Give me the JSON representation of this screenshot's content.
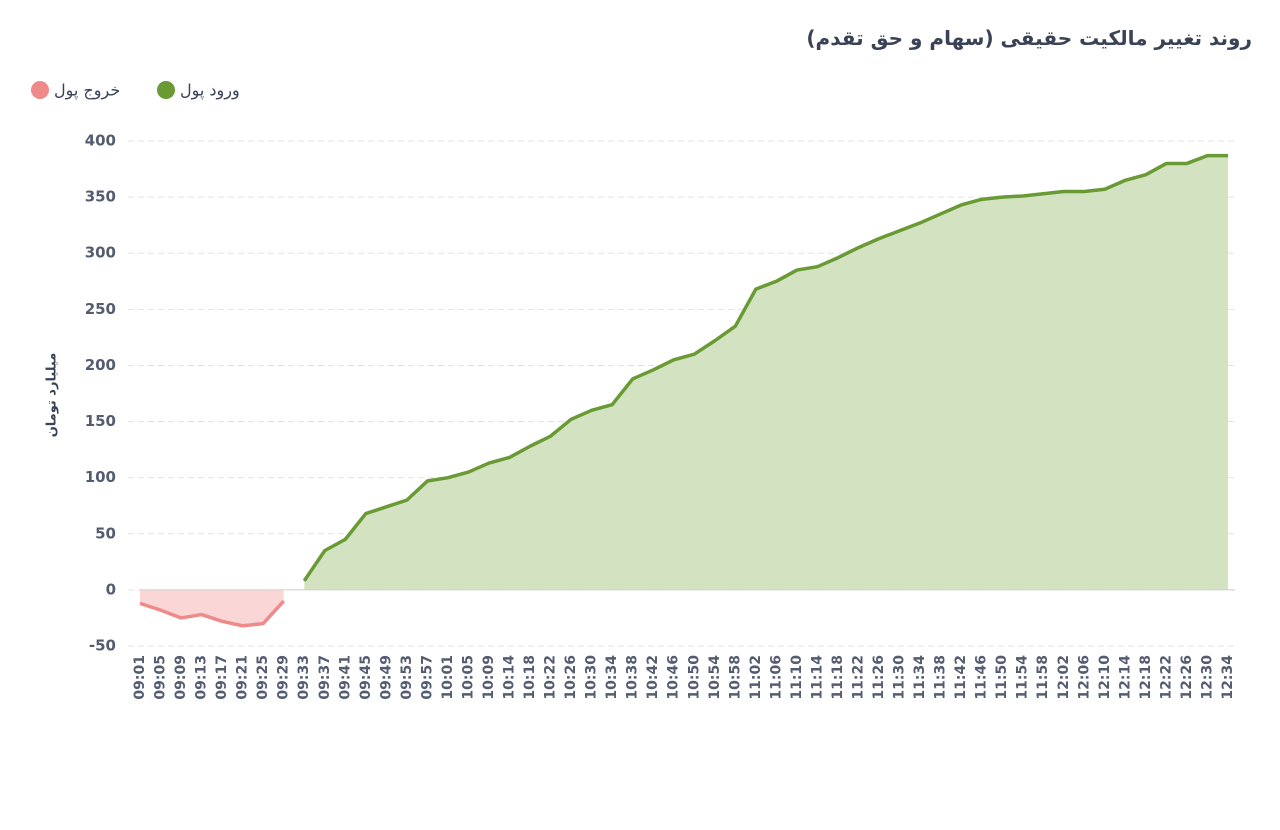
{
  "chart_data": {
    "type": "area",
    "title": "روند تغییر مالکیت حقیقی (سهام و حق تقدم)",
    "y_label": "میلیارد تومان",
    "categories": [
      "09:01",
      "09:05",
      "09:09",
      "09:13",
      "09:17",
      "09:21",
      "09:25",
      "09:29",
      "09:33",
      "09:37",
      "09:41",
      "09:45",
      "09:49",
      "09:53",
      "09:57",
      "10:01",
      "10:05",
      "10:09",
      "10:14",
      "10:18",
      "10:22",
      "10:26",
      "10:30",
      "10:34",
      "10:38",
      "10:42",
      "10:46",
      "10:50",
      "10:54",
      "10:58",
      "11:02",
      "11:06",
      "11:10",
      "11:14",
      "11:18",
      "11:22",
      "11:26",
      "11:30",
      "11:34",
      "11:38",
      "11:42",
      "11:46",
      "11:50",
      "11:54",
      "11:58",
      "12:02",
      "12:06",
      "12:10",
      "12:14",
      "12:18",
      "12:22",
      "12:26",
      "12:30",
      "12:34"
    ],
    "series": [
      {
        "name": "ورود پول",
        "color": "#6a9a34",
        "fill": "#d3e3c2",
        "values": [
          null,
          null,
          null,
          null,
          null,
          null,
          null,
          null,
          8,
          35,
          45,
          68,
          74,
          80,
          97,
          100,
          105,
          113,
          118,
          128,
          137,
          152,
          160,
          165,
          188,
          196,
          205,
          210,
          222,
          235,
          268,
          275,
          285,
          288,
          296,
          305,
          313,
          320,
          327,
          335,
          343,
          348,
          350,
          351,
          353,
          355,
          355,
          357,
          365,
          370,
          380,
          380,
          387,
          387
        ]
      },
      {
        "name": "خروج پول",
        "color": "#f08a8a",
        "fill": "#fbd6d6",
        "values": [
          -12,
          -18,
          -25,
          -22,
          -28,
          -32,
          -30,
          -10,
          null,
          null,
          null,
          null,
          null,
          null,
          null,
          null,
          null,
          null,
          null,
          null,
          null,
          null,
          null,
          null,
          null,
          null,
          null,
          null,
          null,
          null,
          null,
          null,
          null,
          null,
          null,
          null,
          null,
          null,
          null,
          null,
          null,
          null,
          null,
          null,
          null,
          null,
          null,
          null,
          null,
          null,
          null,
          null,
          null,
          null
        ]
      }
    ],
    "ylim": [
      -50,
      400
    ],
    "yticks": [
      -50,
      0,
      50,
      100,
      150,
      200,
      250,
      300,
      350,
      400
    ],
    "grid": true
  }
}
